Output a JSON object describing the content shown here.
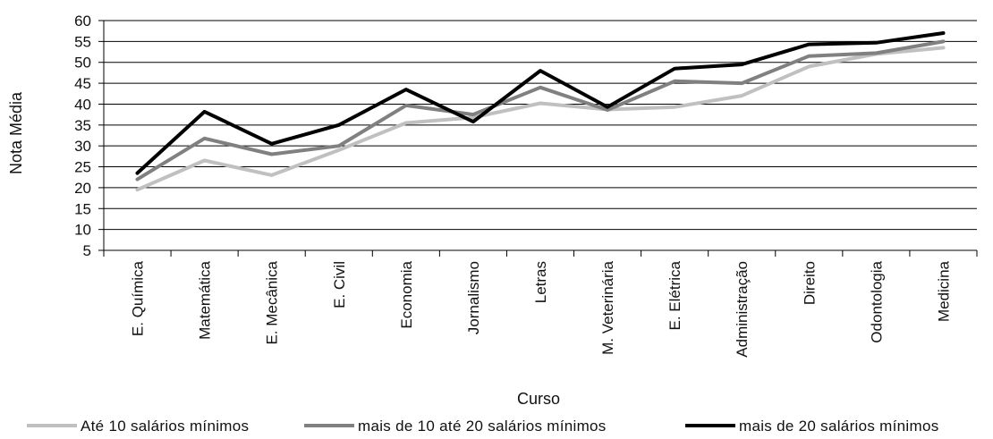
{
  "chart_data": {
    "type": "line",
    "xlabel": "Curso",
    "ylabel": "Nota Média",
    "ylim": [
      5,
      60
    ],
    "yticks": [
      5,
      10,
      15,
      20,
      25,
      30,
      35,
      40,
      45,
      50,
      55,
      60
    ],
    "grid": true,
    "legend_position": "bottom",
    "categories": [
      "E. Química",
      "Matemática",
      "E. Mecânica",
      "E. Civil",
      "Economia",
      "Jornalismo",
      "Letras",
      "M. Veterinária",
      "E. Elétrica",
      "Administração",
      "Direito",
      "Odontologia",
      "Medicina"
    ],
    "series": [
      {
        "name": "Até 10 salários mínimos",
        "color": "#c0c0c0",
        "values": [
          19.5,
          26.5,
          23,
          29,
          35.5,
          36.8,
          40.2,
          38.7,
          39.3,
          42,
          49,
          52,
          53.5
        ]
      },
      {
        "name": "mais de 10 até 20 salários mínimos",
        "color": "#808080",
        "values": [
          22,
          31.8,
          28,
          30,
          39.7,
          37.5,
          44,
          38.6,
          45.5,
          45,
          51.5,
          52.2,
          55
        ]
      },
      {
        "name": "mais de 20 salários mínimos",
        "color": "#000000",
        "values": [
          23.5,
          38.2,
          30.5,
          35,
          43.5,
          35.8,
          48,
          39.3,
          48.5,
          49.5,
          54.3,
          54.7,
          57
        ]
      }
    ]
  }
}
